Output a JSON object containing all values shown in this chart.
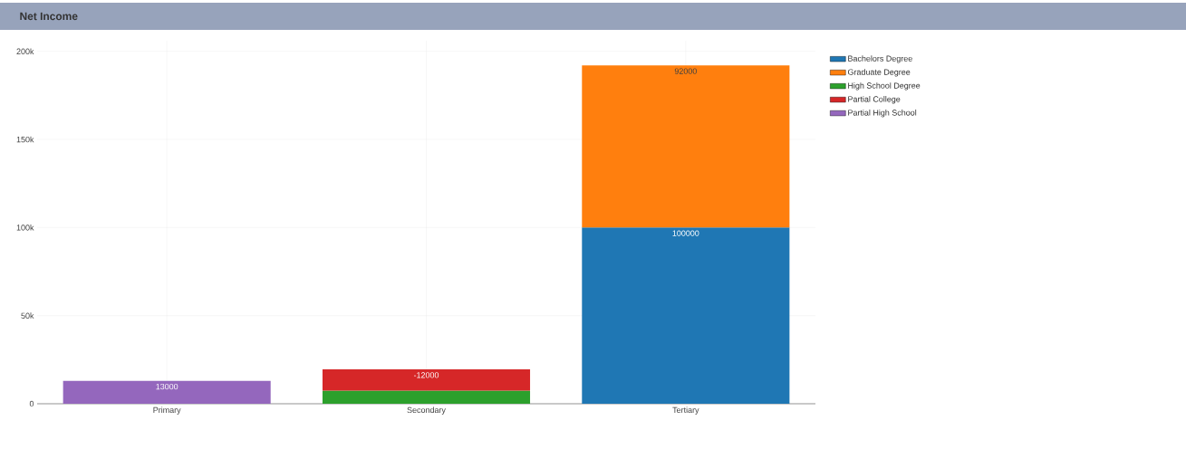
{
  "chart_data": {
    "type": "bar",
    "title": "Net Income",
    "categories": [
      "Primary",
      "Secondary",
      "Tertiary"
    ],
    "series": [
      {
        "name": "Bachelors Degree",
        "color": "#1f77b4",
        "values": [
          null,
          null,
          100000
        ],
        "base": [
          null,
          null,
          0
        ],
        "value_labels": [
          null,
          null,
          "100000"
        ]
      },
      {
        "name": "Graduate Degree",
        "color": "#ff7f0e",
        "values": [
          null,
          null,
          92000
        ],
        "base": [
          null,
          null,
          100000
        ],
        "value_labels": [
          null,
          null,
          "92000"
        ]
      },
      {
        "name": "High School Degree",
        "color": "#2ca02c",
        "values": [
          null,
          7500,
          null
        ],
        "base": [
          null,
          0,
          null
        ],
        "value_labels": [
          null,
          null,
          null
        ]
      },
      {
        "name": "Partial College",
        "color": "#d62728",
        "values": [
          null,
          -12000,
          null
        ],
        "base": [
          null,
          19500,
          null
        ],
        "value_labels": [
          null,
          "-12000",
          null
        ]
      },
      {
        "name": "Partial High School",
        "color": "#9467bd",
        "values": [
          13000,
          null,
          null
        ],
        "base": [
          0,
          null,
          null
        ],
        "value_labels": [
          "13000",
          null,
          null
        ]
      }
    ],
    "ylim": [
      0,
      206000
    ],
    "yticks": [
      {
        "value": 0,
        "label": "0"
      },
      {
        "value": 50000,
        "label": "50k"
      },
      {
        "value": 100000,
        "label": "100k"
      },
      {
        "value": 150000,
        "label": "150k"
      },
      {
        "value": 200000,
        "label": "200k"
      }
    ],
    "grid": true,
    "legend": "top right"
  }
}
